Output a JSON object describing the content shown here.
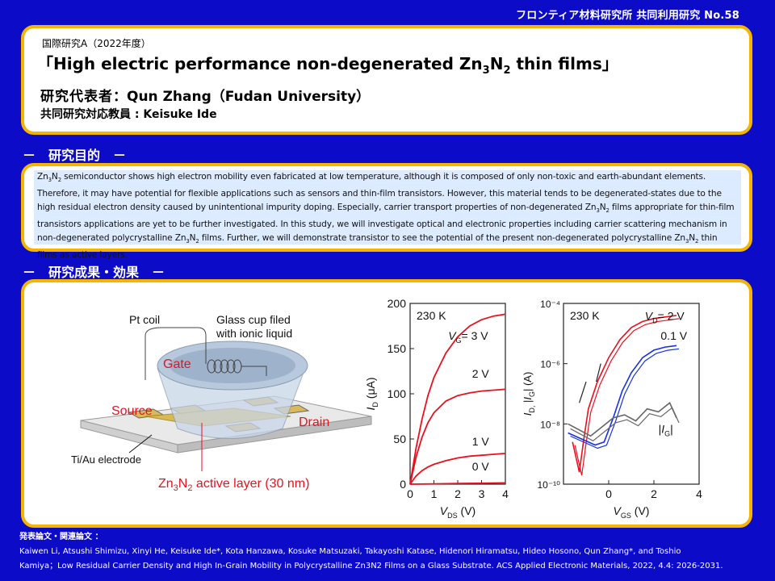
{
  "header": {
    "title": "フロンティア材料研究所  共同利用研究  No.58"
  },
  "title_box": {
    "subtitle": "国際研究A（2022年度）",
    "title_open": "「High electric performance non-degenerated Zn",
    "title_sub1": "3",
    "title_mid": "N",
    "title_sub2": "2",
    "title_close": " thin films」",
    "rep_label": "研究代表者",
    "rep_value": "：Qun Zhang（Fudan University）",
    "collab_label": "共同研究対応教員",
    "collab_value": " : Keisuke Ide"
  },
  "sections": {
    "purpose_heading": "－　研究目的　－",
    "results_heading": "－　研究成果・効果　－"
  },
  "purpose": {
    "p1a": "Zn",
    "p1s1": "3",
    "p1b": "N",
    "p1s2": "2",
    "p1c": " semiconductor shows high electron mobility even fabricated at low temperature, although it is composed of only non-toxic and earth-abundant elements. Therefore, it may have potential for flexible applications such as sensors and thin-film transistors. However, this material tends to be degenerated-states due to the high residual electron density caused by unintentional impurity doping. Especially, carrier transport properties of non-degenerated Zn",
    "p2s1": "3",
    "p2b": "N",
    "p2s2": "2",
    "p2c": " films appropriate for thin-film transistors applications are yet to be further investigated. In this study, we will investigate optical and electronic properties including carrier scattering mechanism in non-degenerated polycrystalline Zn",
    "p3s1": "3",
    "p3b": "N",
    "p3s2": "2",
    "p3c": " films. Further, we will demonstrate transistor to see the potential of the present non-degenerated polycrystalline Zn",
    "p4s1": "3",
    "p4b": "N",
    "p4s2": "2",
    "p4c": " thin films as active layers."
  },
  "illustration": {
    "pt_coil": "Pt coil",
    "glass_cup_1": "Glass cup filed",
    "glass_cup_2": "with ionic liquid",
    "gate": "Gate",
    "source": "Source",
    "drain": "Drain",
    "electrode": "Ti/Au electrode",
    "layer_a": "Zn",
    "layer_s1": "3",
    "layer_b": "N",
    "layer_s2": "2",
    "layer_c": " active layer (30 nm)"
  },
  "chart_data": [
    {
      "type": "line",
      "annotation": "230 K",
      "xlabel": "V_DS (V)",
      "ylabel": "I_D (μA)",
      "xlim": [
        0,
        4
      ],
      "ylim": [
        0,
        200
      ],
      "xticks": [
        "0",
        "1",
        "2",
        "3",
        "4"
      ],
      "yticks": [
        "0",
        "50",
        "100",
        "150",
        "200"
      ],
      "color": "#e8121c",
      "series": [
        {
          "name": "V_G= 3 V",
          "x": [
            0,
            0.25,
            0.5,
            0.75,
            1,
            1.5,
            2,
            2.5,
            3,
            3.5,
            4
          ],
          "values": [
            0,
            40,
            72,
            98,
            118,
            145,
            163,
            175,
            182,
            186,
            188
          ]
        },
        {
          "name": "2 V",
          "x": [
            0,
            0.25,
            0.5,
            0.75,
            1,
            1.5,
            2,
            2.5,
            3,
            3.5,
            4
          ],
          "values": [
            0,
            30,
            52,
            68,
            79,
            92,
            98,
            101,
            103,
            104,
            105
          ]
        },
        {
          "name": "1 V",
          "x": [
            0,
            0.25,
            0.5,
            0.75,
            1,
            1.5,
            2,
            2.5,
            3,
            3.5,
            4
          ],
          "values": [
            0,
            9,
            15,
            19,
            22,
            26,
            29,
            31,
            32,
            33,
            34
          ]
        },
        {
          "name": "0 V",
          "x": [
            0,
            1,
            2,
            3,
            4
          ],
          "values": [
            0,
            0.4,
            0.8,
            1.1,
            1.4
          ]
        }
      ]
    },
    {
      "type": "line",
      "annotation": "230 K",
      "xlabel": "V_GS (V)",
      "ylabel": "I_D, |I_G| (A)",
      "xlim": [
        -2,
        4
      ],
      "ylim": [
        1e-10,
        0.0001
      ],
      "yscale": "log",
      "xticks": [
        "0",
        "2",
        "4"
      ],
      "yticks": [
        "10⁻¹⁰",
        "10⁻⁸",
        "10⁻⁶",
        "10⁻⁴"
      ],
      "series": [
        {
          "name": "V_D= 2 V",
          "color": "#e8121c",
          "x": [
            -1.6,
            -1.3,
            -1.1,
            -0.9,
            -0.5,
            0,
            0.5,
            1,
            1.5,
            2,
            2.5,
            3
          ],
          "log10_values": [
            -8.6,
            -9.6,
            -8.5,
            -7.5,
            -6.6,
            -5.8,
            -5.2,
            -4.8,
            -4.6,
            -4.5,
            -4.45,
            -4.4
          ]
        },
        {
          "name": "0.1 V",
          "color": "#1530e8",
          "x": [
            -1.8,
            -1.2,
            -0.6,
            -0.2,
            0.2,
            0.6,
            1,
            1.5,
            2,
            2.5,
            3
          ],
          "log10_values": [
            -8.3,
            -8.5,
            -8.7,
            -8.6,
            -7.8,
            -6.9,
            -6.3,
            -5.8,
            -5.55,
            -5.45,
            -5.4
          ]
        },
        {
          "name": "|I_G|",
          "color": "#666666",
          "x": [
            -1.8,
            -1.3,
            -0.8,
            -0.3,
            0.2,
            0.7,
            1.2,
            1.7,
            2.2,
            2.7,
            3
          ],
          "log10_values": [
            -8.0,
            -8.2,
            -8.4,
            -8.1,
            -7.8,
            -7.7,
            -7.9,
            -7.5,
            -7.6,
            -7.3,
            -7.8
          ]
        }
      ],
      "labels": [
        "V_D= 2 V",
        "0.1 V",
        "|I_G|"
      ]
    }
  ],
  "publications": {
    "heading": "発表論文・関連論文 ：",
    "line1": "Kaiwen Li, Atsushi Shimizu, Xinyi He, Keisuke Ide*, Kota Hanzawa, Kosuke Matsuzaki, Takayoshi Katase, Hidenori Hiramatsu, Hideo Hosono, Qun Zhang*, and Toshio",
    "line2": "Kamiya；Low Residual Carrier Density and High In-Grain Mobility in Polycrystalline Zn3N2 Films on a Glass Substrate. ACS Applied Electronic Materials, 2022, 4.4: 2026-2031."
  }
}
